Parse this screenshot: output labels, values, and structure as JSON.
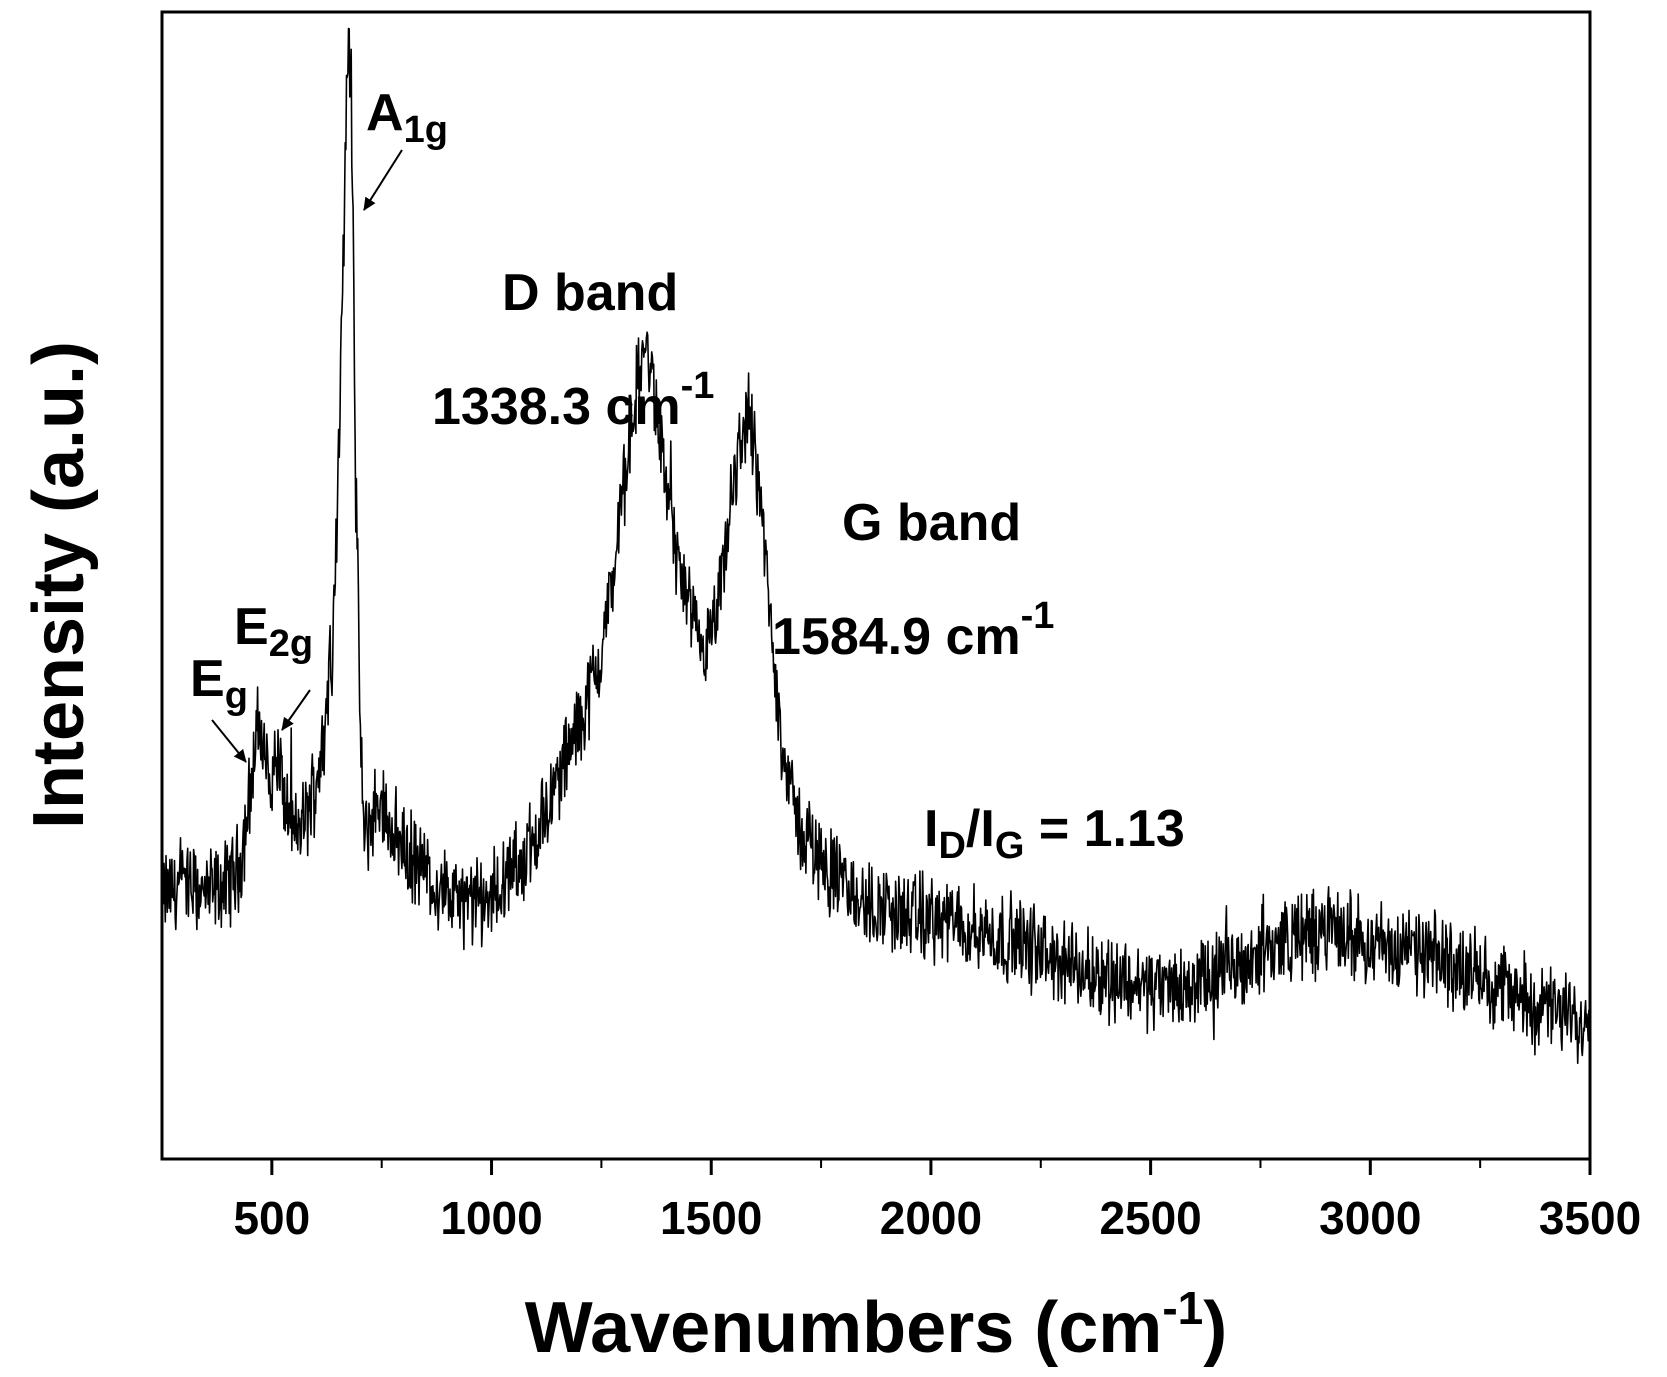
{
  "chart_data": {
    "type": "line",
    "xlabel": {
      "text": "Wavenumbers (cm",
      "sup": "-1",
      "after": ")"
    },
    "ylabel": "Intensity (a.u.)",
    "xlim": [
      250,
      3500
    ],
    "ylim": [
      0,
      100
    ],
    "x_ticks": [
      500,
      1000,
      1500,
      2000,
      2500,
      3000,
      3500
    ],
    "x_minor_ticks": [
      750,
      1250,
      1750,
      2250,
      2750,
      3250
    ],
    "x_tick_labels": [
      "500",
      "1000",
      "1500",
      "2000",
      "2500",
      "3000",
      "3500"
    ],
    "y_ticks_visible": false,
    "grid": false,
    "line_color": "#000000",
    "series": [
      {
        "x": [
          250,
          300,
          350,
          400,
          430,
          450,
          470,
          480,
          490,
          500,
          510,
          520,
          530,
          550,
          580,
          600,
          620,
          640,
          650,
          660,
          670,
          675,
          680,
          685,
          690,
          700,
          710,
          720,
          740,
          760,
          800,
          850,
          900,
          950,
          1000,
          1050,
          1100,
          1150,
          1200,
          1250,
          1280,
          1300,
          1320,
          1340,
          1350,
          1360,
          1380,
          1400,
          1420,
          1440,
          1460,
          1480,
          1500,
          1520,
          1540,
          1560,
          1575,
          1585,
          1600,
          1620,
          1640,
          1660,
          1680,
          1700,
          1750,
          1800,
          1850,
          1900,
          1950,
          2000,
          2100,
          2200,
          2300,
          2400,
          2500,
          2600,
          2700,
          2800,
          2900,
          3000,
          3100,
          3200,
          3300,
          3400,
          3500
        ],
        "y": [
          23,
          24,
          23,
          24,
          26,
          32,
          38,
          36,
          34,
          33,
          35,
          34,
          31,
          28,
          30,
          33,
          37,
          48,
          58,
          74,
          92,
          97,
          95,
          84,
          62,
          40,
          27,
          29,
          31,
          30,
          27,
          25,
          23,
          22,
          23,
          25,
          28,
          33,
          38,
          44,
          52,
          58,
          65,
          69,
          71,
          69,
          64,
          58,
          53,
          49,
          46,
          44,
          45,
          49,
          55,
          61,
          64,
          65,
          62,
          54,
          44,
          37,
          32,
          29,
          26,
          24,
          22,
          22,
          21,
          21,
          20,
          19,
          17,
          16,
          15,
          15,
          17,
          19,
          20,
          19,
          18,
          17,
          15,
          13,
          12
        ]
      }
    ],
    "annotations": {
      "a1g": {
        "main": "A",
        "sub": "1g"
      },
      "e2g": {
        "main": "E",
        "sub": "2g"
      },
      "eg": {
        "main": "E",
        "sub": "g"
      },
      "d_band": "D band",
      "d_pos": {
        "main": "1338.3 cm",
        "sup": "-1"
      },
      "g_band": "G band",
      "g_pos": {
        "main": "1584.9 cm",
        "sup": "-1"
      },
      "ratio": {
        "i1": "I",
        "s1": "D",
        "slash": "/I",
        "s2": "G",
        "rest": " = 1.13"
      }
    }
  }
}
